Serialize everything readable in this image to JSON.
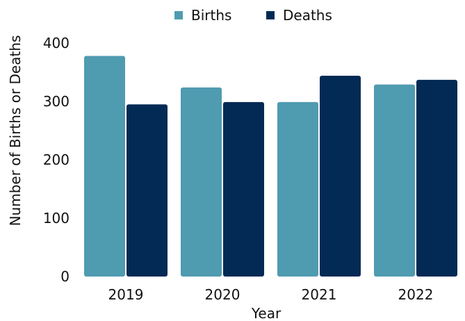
{
  "chart_data": {
    "type": "bar",
    "categories": [
      "2019",
      "2020",
      "2021",
      "2022"
    ],
    "series": [
      {
        "name": "Births",
        "color": "#4f9bb0",
        "values": [
          378,
          324,
          299,
          329
        ]
      },
      {
        "name": "Deaths",
        "color": "#022a54",
        "values": [
          295,
          299,
          344,
          337
        ]
      }
    ],
    "xlabel": "Year",
    "ylabel": "Number of Births or Deaths",
    "ylim": [
      0,
      400
    ],
    "yticks": [
      "0",
      "100",
      "200",
      "300",
      "400"
    ],
    "grid": false,
    "legend_position": "top-center"
  }
}
